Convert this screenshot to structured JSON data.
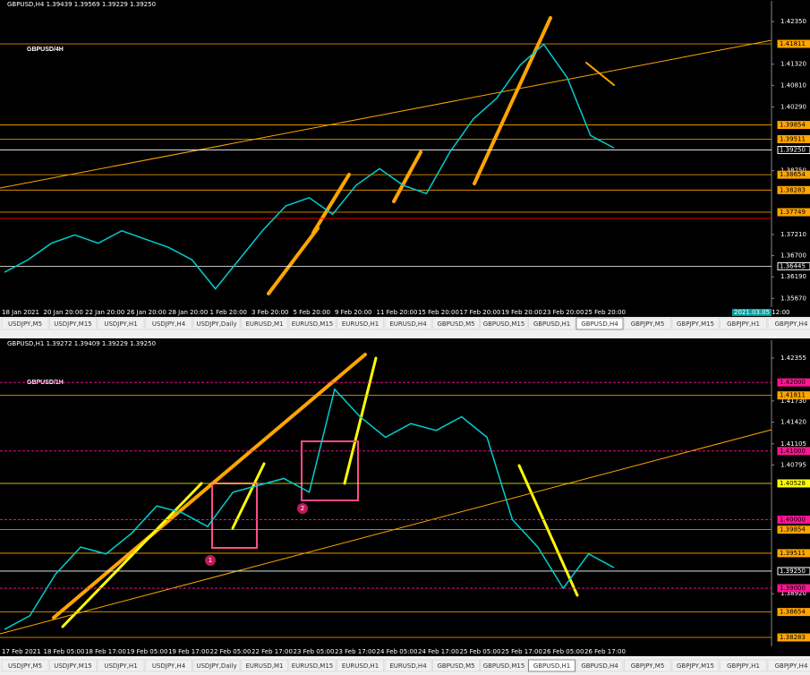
{
  "panels": [
    {
      "header": "GBPUSD,H4  1.39439 1.39569 1.39229 1.39250",
      "title": "GBPUSD/4H",
      "ylim": [
        1.3546,
        1.4261
      ],
      "ticks": [
        {
          "value": 1.4235,
          "label": "1.42350"
        },
        {
          "value": 1.4132,
          "label": "1.41320"
        },
        {
          "value": 1.4081,
          "label": "1.40810"
        },
        {
          "value": 1.4029,
          "label": "1.40290"
        },
        {
          "value": 1.3875,
          "label": "1.38750"
        },
        {
          "value": 1.3721,
          "label": "1.37210"
        },
        {
          "value": 1.367,
          "label": "1.36700"
        },
        {
          "value": 1.3619,
          "label": "1.36190"
        },
        {
          "value": 1.3567,
          "label": "1.35670"
        }
      ],
      "levels": [
        {
          "value": 1.41811,
          "label": "1.41811",
          "color": "#ffa500"
        },
        {
          "value": 1.39854,
          "label": "1.39854",
          "color": "#ffa500"
        },
        {
          "value": 1.39511,
          "label": "1.39511",
          "color": "#ffa500"
        },
        {
          "value": 1.3925,
          "label": "1.39250",
          "color": "#ffffff"
        },
        {
          "value": 1.38654,
          "label": "1.38654",
          "color": "#ffa500"
        },
        {
          "value": 1.38283,
          "label": "1.38283",
          "color": "#ffa500"
        },
        {
          "value": 1.37749,
          "label": "1.37749",
          "color": "#ffa500"
        },
        {
          "value": 1.376,
          "color": "#ff0000"
        },
        {
          "value": 1.36445,
          "label": "1.36445",
          "color": "#ffffff"
        }
      ],
      "closes": [
        1.363,
        1.366,
        1.37,
        1.372,
        1.37,
        1.373,
        1.371,
        1.369,
        1.366,
        1.359,
        1.366,
        1.373,
        1.379,
        1.381,
        1.377,
        1.384,
        1.388,
        1.384,
        1.382,
        1.392,
        1.4,
        1.405,
        1.413,
        1.418,
        1.41,
        1.396,
        1.393
      ],
      "dates": [
        "18 Jan 2021",
        "20 Jan 20:00",
        "22 Jan 20:00",
        "26 Jan 20:00",
        "28 Jan 20:00",
        "1 Feb 20:00",
        "3 Feb 20:00",
        "5 Feb 20:00",
        "9 Feb 20:00",
        "11 Feb 20:00",
        "15 Feb 20:00",
        "17 Feb 20:00",
        "19 Feb 20:00",
        "23 Feb 20:00",
        "25 Feb 20:00"
      ],
      "time_box": "2021.03.05 12:00",
      "tabs": [
        "USDJPY,M5",
        "USDJPY,M15",
        "USDJPY,H1",
        "USDJPY,H4",
        "USDJPY,Daily",
        "EURUSD,M1",
        "EURUSD,M15",
        "EURUSD,H1",
        "EURUSD,H4",
        "GBPUSD,M5",
        "GBPUSD,M15",
        "GBPUSD,H1",
        "GBPUSD,H4",
        "GBPJPY,M5",
        "GBPJPY,M15",
        "GBPJPY,H1",
        "GBPJPY,H4"
      ],
      "active_tab": 12
    },
    {
      "header": "GBPUSD,H1  1.39272 1.39409 1.39229 1.39250",
      "title": "GBPUSD/1H",
      "ylim": [
        1.38153,
        1.42485
      ],
      "ticks": [
        1.42355,
        {
          "value": 1.4173,
          "label": "1.41730"
        },
        {
          "value": 1.4142,
          "label": "1.41420"
        },
        1.41105,
        1.40795,
        {
          "value": 1.3892,
          "label": "1.38920"
        }
      ],
      "levels": [
        {
          "value": 1.42,
          "label": "1.42000",
          "color": "#ff1493"
        },
        {
          "value": 1.41811,
          "label": "1.41811",
          "color": "#ffa500"
        },
        {
          "value": 1.41,
          "label": "1.41000",
          "color": "#ff1493"
        },
        {
          "value": 1.40528,
          "label": "1.40528",
          "color": "#ffff00"
        },
        {
          "value": 1.4,
          "label": "1.40000",
          "color": "#ff1493"
        },
        {
          "value": 1.39854,
          "label": "1.39854",
          "color": "#ffa500"
        },
        {
          "value": 1.39511,
          "label": "1.39511",
          "color": "#ffa500"
        },
        {
          "value": 1.3925,
          "label": "1.39250",
          "color": "#ffffff"
        },
        {
          "value": 1.39,
          "label": "1.39000",
          "color": "#ff1493"
        },
        {
          "value": 1.38654,
          "label": "1.38654",
          "color": "#ffa500"
        },
        {
          "value": 1.38283,
          "label": "1.38283",
          "color": "#ffa500"
        }
      ],
      "closes": [
        1.384,
        1.386,
        1.392,
        1.396,
        1.395,
        1.398,
        1.402,
        1.401,
        1.399,
        1.404,
        1.405,
        1.406,
        1.404,
        1.419,
        1.415,
        1.412,
        1.414,
        1.413,
        1.415,
        1.412,
        1.4,
        1.396,
        1.39,
        1.395,
        1.393
      ],
      "dates": [
        "17 Feb 2021",
        "18 Feb 05:00",
        "18 Feb 17:00",
        "19 Feb 05:00",
        "19 Feb 17:00",
        "22 Feb 05:00",
        "22 Feb 17:00",
        "23 Feb 05:00",
        "23 Feb 17:00",
        "24 Feb 05:00",
        "24 Feb 17:00",
        "25 Feb 05:00",
        "25 Feb 17:00",
        "26 Feb 05:00",
        "26 Feb 17:00"
      ],
      "markers": [
        "1",
        "2"
      ],
      "tabs": [
        "USDJPY,M5",
        "USDJPY,M15",
        "USDJPY,H1",
        "USDJPY,H4",
        "USDJPY,Daily",
        "EURUSD,M1",
        "EURUSD,M15",
        "EURUSD,H1",
        "EURUSD,H4",
        "GBPUSD,M5",
        "GBPUSD,M15",
        "GBPUSD,H1",
        "GBPUSD,H4",
        "GBPJPY,M5",
        "GBPJPY,M15",
        "GBPJPY,H1",
        "GBPJPY,H4"
      ],
      "active_tab": 11
    }
  ]
}
